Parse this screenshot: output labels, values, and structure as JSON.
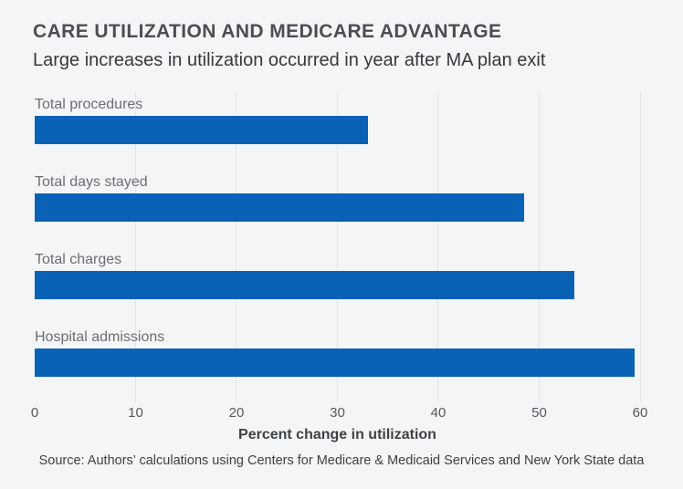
{
  "page": {
    "background_color": "#f4f5f7"
  },
  "header": {
    "title": "CARE UTILIZATION AND MEDICARE ADVANTAGE",
    "subtitle": "Large increases in utilization occurred in year after MA plan exit"
  },
  "chart_data": {
    "type": "bar",
    "orientation": "horizontal",
    "title": "CARE UTILIZATION AND MEDICARE ADVANTAGE",
    "subtitle": "Large increases in utilization occurred in year after MA plan exit",
    "categories": [
      "Total procedures",
      "Total days stayed",
      "Total charges",
      "Hospital admissions"
    ],
    "values": [
      33,
      48.5,
      53.5,
      59.5
    ],
    "xlabel": "Percent change in utilization",
    "ylabel": "",
    "xticks": [
      0,
      10,
      20,
      30,
      40,
      50,
      60
    ],
    "xlim": [
      0,
      60
    ],
    "grid": "vertical",
    "legend": "none",
    "bar_color": "#0a62b6",
    "gridline_color": "#e2e4e9"
  },
  "footer": {
    "source": "Source: Authors’ calculations using Centers for Medicare & Medicaid Services and New York State data"
  }
}
